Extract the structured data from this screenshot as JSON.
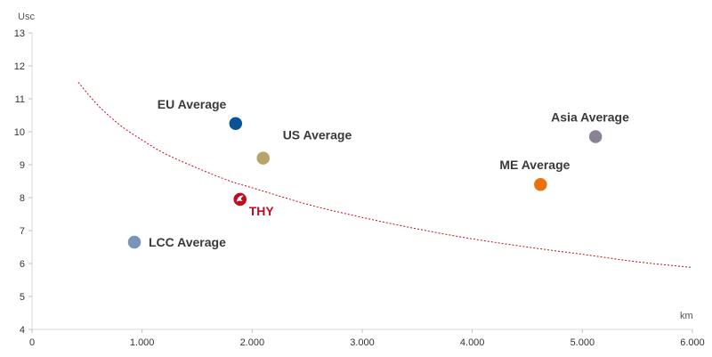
{
  "chart_data": {
    "type": "scatter",
    "ylabel": "Usc",
    "xlabel": "km",
    "xlim": [
      0,
      6000
    ],
    "ylim": [
      4,
      13
    ],
    "x_ticks": [
      {
        "value": 0,
        "label": "0"
      },
      {
        "value": 1000,
        "label": "1.000"
      },
      {
        "value": 2000,
        "label": "2.000"
      },
      {
        "value": 3000,
        "label": "3.000"
      },
      {
        "value": 4000,
        "label": "4.000"
      },
      {
        "value": 5000,
        "label": "5.000"
      },
      {
        "value": 6000,
        "label": "6.000"
      }
    ],
    "y_ticks": [
      {
        "value": 4,
        "label": "4"
      },
      {
        "value": 5,
        "label": "5"
      },
      {
        "value": 6,
        "label": "6"
      },
      {
        "value": 7,
        "label": "7"
      },
      {
        "value": 8,
        "label": "8"
      },
      {
        "value": 9,
        "label": "9"
      },
      {
        "value": 10,
        "label": "10"
      },
      {
        "value": 11,
        "label": "11"
      },
      {
        "value": 12,
        "label": "12"
      },
      {
        "value": 13,
        "label": "13"
      }
    ],
    "grid": false,
    "points": [
      {
        "label": "EU Average",
        "x": 1850,
        "y": 10.25,
        "color": "#0b5394",
        "label_position": "above-left"
      },
      {
        "label": "US Average",
        "x": 2100,
        "y": 9.2,
        "color": "#b8a46a",
        "label_position": "above-right"
      },
      {
        "label": "THY",
        "x": 1890,
        "y": 7.95,
        "color": "#c00d1e",
        "label_position": "below-right",
        "icon": "turkish-airlines-logo"
      },
      {
        "label": "LCC Average",
        "x": 930,
        "y": 6.65,
        "color": "#7a93b8",
        "label_position": "right"
      },
      {
        "label": "ME Average",
        "x": 4620,
        "y": 8.4,
        "color": "#e8720c",
        "label_position": "above-left"
      },
      {
        "label": "Asia Average",
        "x": 5120,
        "y": 9.85,
        "color": "#8a8394",
        "label_position": "above-left"
      }
    ],
    "trendline": {
      "style": "dashed",
      "color": "#c00d1e",
      "x": [
        420,
        600,
        800,
        1000,
        1200,
        1500,
        1800,
        2000,
        2500,
        3000,
        3500,
        4000,
        4500,
        5000,
        5500,
        6000
      ],
      "y": [
        11.5,
        10.8,
        10.2,
        9.75,
        9.35,
        8.9,
        8.5,
        8.3,
        7.8,
        7.4,
        7.05,
        6.75,
        6.5,
        6.28,
        6.05,
        5.88
      ]
    }
  }
}
